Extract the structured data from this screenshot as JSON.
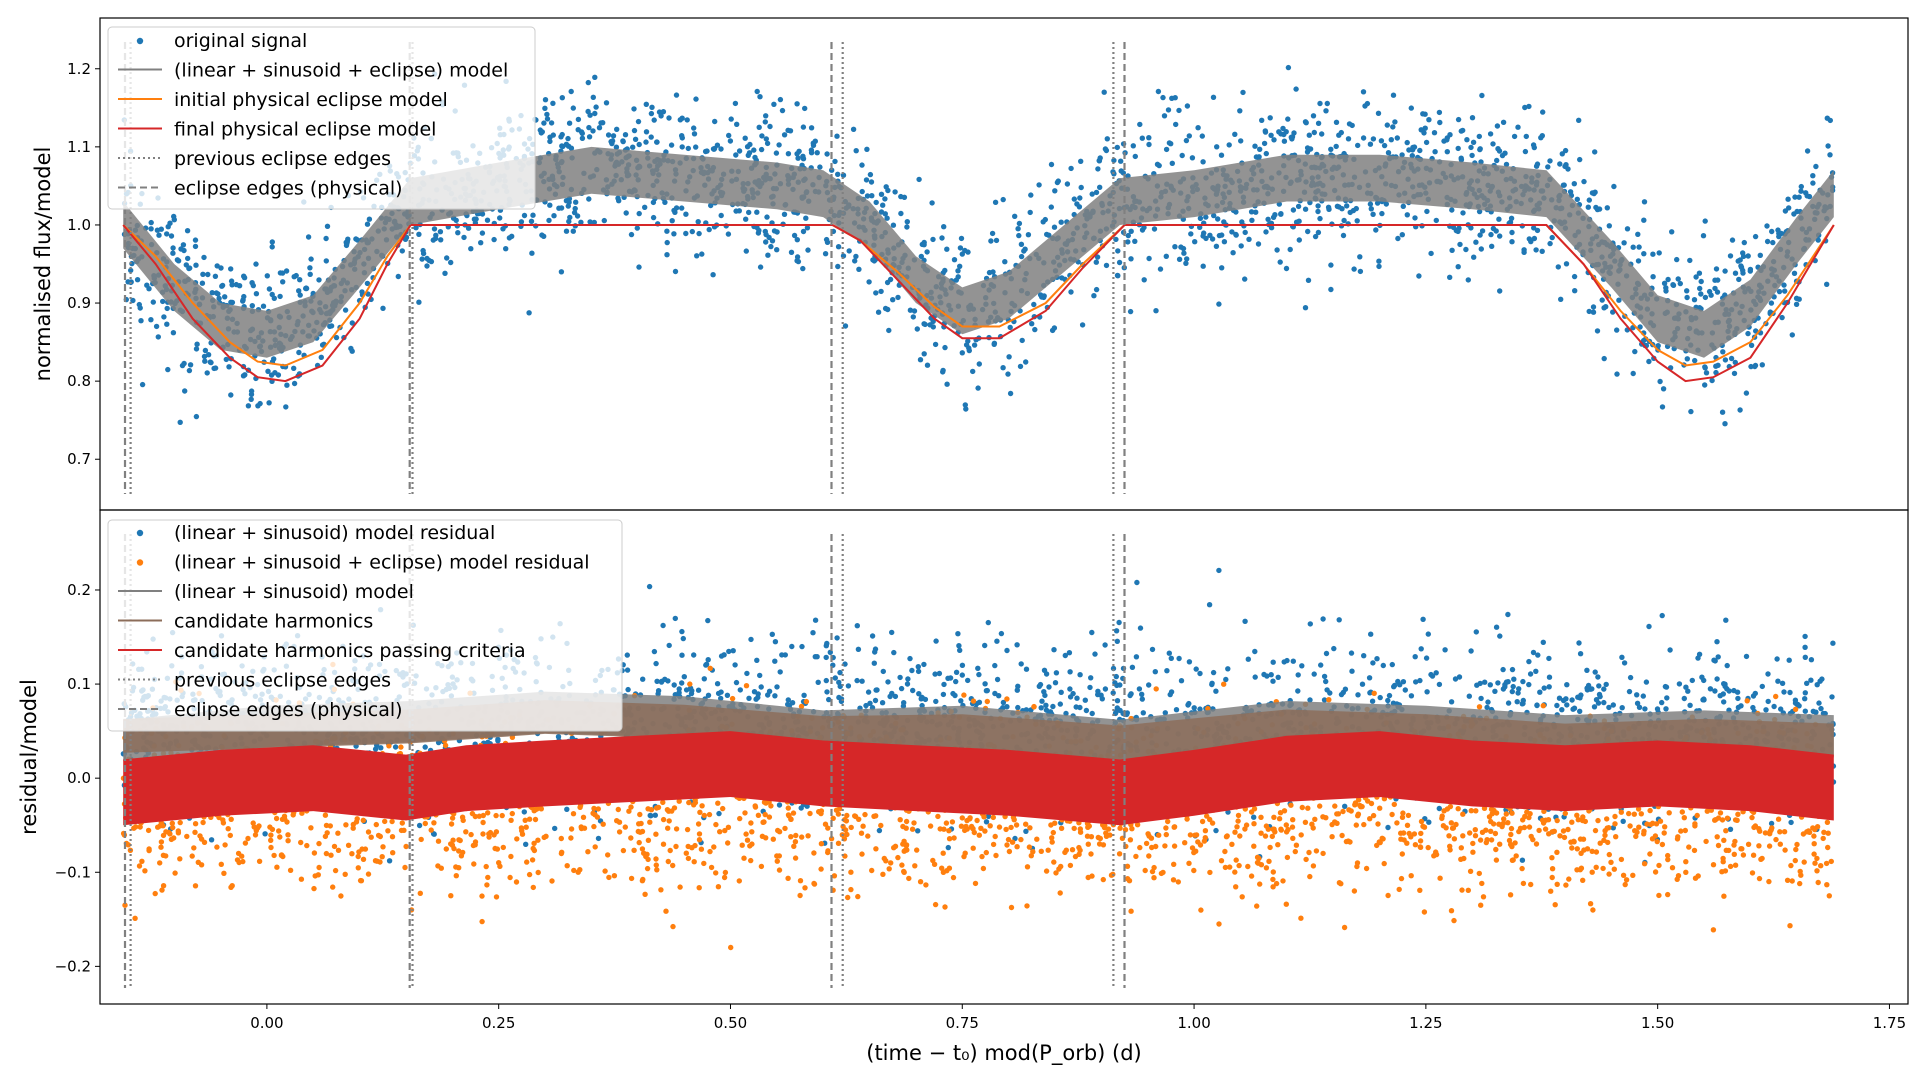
{
  "figure": {
    "xlabel": "(time − t₀) mod(P_orb) (d)"
  },
  "chart_data": [
    {
      "type": "scatter",
      "panel": "top",
      "ylabel": "normalised flux/model",
      "xlim": [
        -0.18,
        1.77
      ],
      "ylim": [
        0.635,
        1.265
      ],
      "x_ticks": [
        0.0,
        0.25,
        0.5,
        0.75,
        1.0,
        1.25,
        1.5,
        1.75
      ],
      "x_tick_labels": [
        "0.00",
        "0.25",
        "0.50",
        "0.75",
        "1.00",
        "1.25",
        "1.50",
        "1.75"
      ],
      "y_ticks": [
        0.7,
        0.8,
        0.9,
        1.0,
        1.1,
        1.2
      ],
      "y_tick_labels": [
        "0.7",
        "0.8",
        "0.9",
        "1.0",
        "1.1",
        "1.2"
      ],
      "legend_position": "top-left",
      "series": [
        {
          "name": "original signal",
          "kind": "points",
          "color": "#1f77b4",
          "x_range": [
            -0.155,
            1.69
          ],
          "scatter_sd": 0.05
        },
        {
          "name": "(linear + sinusoid + eclipse) model",
          "kind": "band",
          "color": "#808080",
          "x": [
            -0.155,
            -0.1,
            -0.05,
            0.0,
            0.05,
            0.1,
            0.155,
            0.25,
            0.35,
            0.45,
            0.55,
            0.6,
            0.65,
            0.7,
            0.75,
            0.8,
            0.85,
            0.92,
            1.0,
            1.1,
            1.2,
            1.3,
            1.38,
            1.45,
            1.5,
            1.55,
            1.6,
            1.65,
            1.69
          ],
          "y": [
            1.0,
            0.92,
            0.87,
            0.86,
            0.88,
            0.95,
            1.03,
            1.05,
            1.07,
            1.06,
            1.05,
            1.04,
            1.0,
            0.93,
            0.89,
            0.91,
            0.96,
            1.03,
            1.04,
            1.06,
            1.06,
            1.05,
            1.04,
            0.95,
            0.88,
            0.86,
            0.9,
            0.98,
            1.04
          ],
          "half_width": 0.03
        },
        {
          "name": "initial physical eclipse model",
          "kind": "line",
          "color": "#ff7f0e",
          "x": [
            -0.155,
            -0.12,
            -0.08,
            -0.04,
            -0.01,
            0.02,
            0.06,
            0.1,
            0.13,
            0.155,
            0.61,
            0.64,
            0.68,
            0.72,
            0.75,
            0.79,
            0.84,
            0.88,
            0.925,
            1.38,
            1.42,
            1.46,
            1.5,
            1.53,
            1.56,
            1.6,
            1.64,
            1.69
          ],
          "y": [
            1.0,
            0.96,
            0.9,
            0.85,
            0.825,
            0.82,
            0.84,
            0.9,
            0.96,
            1.0,
            1.0,
            0.98,
            0.94,
            0.895,
            0.87,
            0.87,
            0.9,
            0.95,
            1.0,
            1.0,
            0.95,
            0.89,
            0.84,
            0.82,
            0.825,
            0.85,
            0.91,
            1.0
          ]
        },
        {
          "name": "final physical eclipse model",
          "kind": "line",
          "color": "#d62728",
          "x": [
            -0.155,
            -0.12,
            -0.08,
            -0.04,
            -0.01,
            0.02,
            0.06,
            0.1,
            0.13,
            0.155,
            0.61,
            0.64,
            0.68,
            0.72,
            0.75,
            0.79,
            0.84,
            0.88,
            0.925,
            1.38,
            1.42,
            1.46,
            1.5,
            1.53,
            1.56,
            1.6,
            1.64,
            1.69
          ],
          "y": [
            1.0,
            0.95,
            0.88,
            0.83,
            0.805,
            0.8,
            0.82,
            0.88,
            0.95,
            1.0,
            1.0,
            0.98,
            0.93,
            0.88,
            0.855,
            0.855,
            0.89,
            0.945,
            1.0,
            1.0,
            0.95,
            0.88,
            0.825,
            0.8,
            0.805,
            0.83,
            0.9,
            1.0
          ]
        },
        {
          "name": "previous eclipse edges",
          "kind": "vlines",
          "style": "dotted",
          "color": "#808080",
          "x": [
            -0.147,
            0.157,
            0.621,
            0.913
          ]
        },
        {
          "name": "eclipse edges (physical)",
          "kind": "vlines",
          "style": "dashed",
          "color": "#808080",
          "x": [
            -0.153,
            0.154,
            0.609,
            0.925
          ]
        }
      ]
    },
    {
      "type": "scatter",
      "panel": "bottom",
      "ylabel": "residual/model",
      "xlim": [
        -0.18,
        1.77
      ],
      "ylim": [
        -0.24,
        0.285
      ],
      "y_ticks": [
        -0.2,
        -0.1,
        0.0,
        0.1,
        0.2
      ],
      "y_tick_labels": [
        "−0.2",
        "−0.1",
        "0.0",
        "0.1",
        "0.2"
      ],
      "legend_position": "top-left",
      "series": [
        {
          "name": "(linear + sinusoid) model residual",
          "kind": "points",
          "color": "#1f77b4",
          "x_range": [
            -0.155,
            1.69
          ],
          "center": 0.05,
          "scatter_sd": 0.045
        },
        {
          "name": "(linear + sinusoid + eclipse) model residual",
          "kind": "points",
          "color": "#ff7f0e",
          "x_range": [
            -0.155,
            1.69
          ],
          "center": -0.03,
          "scatter_sd": 0.045
        },
        {
          "name": "(linear + sinusoid) model",
          "kind": "band",
          "color": "#808080",
          "x": [
            -0.155,
            0.0,
            0.155,
            0.3,
            0.45,
            0.6,
            0.75,
            0.92,
            1.1,
            1.25,
            1.4,
            1.55,
            1.69
          ],
          "y": [
            0.04,
            0.055,
            0.06,
            0.07,
            0.065,
            0.05,
            0.055,
            0.04,
            0.06,
            0.055,
            0.045,
            0.05,
            0.045
          ],
          "half_width": 0.022
        },
        {
          "name": "candidate harmonics",
          "kind": "band",
          "color": "#8c6d5a",
          "x": [
            -0.155,
            0.0,
            0.155,
            0.3,
            0.45,
            0.6,
            0.75,
            0.92,
            1.1,
            1.25,
            1.4,
            1.55,
            1.69
          ],
          "y": [
            0.045,
            0.05,
            0.055,
            0.065,
            0.06,
            0.048,
            0.05,
            0.038,
            0.055,
            0.05,
            0.04,
            0.045,
            0.04
          ],
          "half_width": 0.018
        },
        {
          "name": "candidate harmonics passing criteria",
          "kind": "band",
          "color": "#d62728",
          "x": [
            -0.155,
            -0.05,
            0.05,
            0.15,
            0.215,
            0.3,
            0.4,
            0.5,
            0.6,
            0.7,
            0.8,
            0.92,
            1.0,
            1.1,
            1.2,
            1.3,
            1.4,
            1.5,
            1.6,
            1.69
          ],
          "y": [
            -0.015,
            -0.005,
            0.0,
            -0.01,
            0.0,
            0.005,
            0.01,
            0.015,
            0.005,
            0.0,
            -0.005,
            -0.015,
            -0.005,
            0.01,
            0.015,
            0.005,
            0.0,
            0.005,
            0.0,
            -0.01
          ],
          "half_width": 0.035
        },
        {
          "name": "previous eclipse edges",
          "kind": "vlines",
          "style": "dotted",
          "color": "#808080",
          "x": [
            -0.147,
            0.157,
            0.621,
            0.913
          ]
        },
        {
          "name": "eclipse edges (physical)",
          "kind": "vlines",
          "style": "dashed",
          "color": "#808080",
          "x": [
            -0.153,
            0.154,
            0.609,
            0.925
          ]
        }
      ]
    }
  ]
}
